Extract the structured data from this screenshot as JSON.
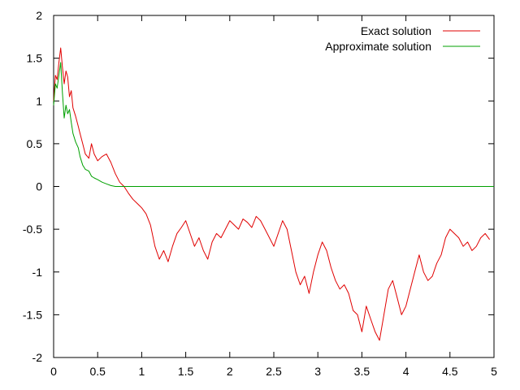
{
  "chart_data": {
    "type": "line",
    "title": "",
    "xlabel": "",
    "ylabel": "",
    "xlim": [
      0,
      5
    ],
    "ylim": [
      -2,
      2
    ],
    "xticks": [
      0,
      0.5,
      1,
      1.5,
      2,
      2.5,
      3,
      3.5,
      4,
      4.5,
      5
    ],
    "yticks": [
      -2,
      -1.5,
      -1,
      -0.5,
      0,
      0.5,
      1,
      1.5,
      2
    ],
    "xtick_labels": [
      "0",
      "0.5",
      "1",
      "1.5",
      "2",
      "2.5",
      "3",
      "3.5",
      "4",
      "4.5",
      "5"
    ],
    "ytick_labels": [
      "-2",
      "-1.5",
      "-1",
      "-0.5",
      "0",
      "0.5",
      "1",
      "1.5",
      "2"
    ],
    "grid": false,
    "legend_position": "top-right",
    "series": [
      {
        "name": "Exact solution",
        "color": "#e00000",
        "x": [
          0.0,
          0.02,
          0.04,
          0.06,
          0.08,
          0.1,
          0.12,
          0.14,
          0.16,
          0.18,
          0.2,
          0.22,
          0.25,
          0.28,
          0.3,
          0.33,
          0.36,
          0.4,
          0.43,
          0.46,
          0.5,
          0.55,
          0.6,
          0.65,
          0.7,
          0.75,
          0.8,
          0.85,
          0.9,
          0.95,
          1.0,
          1.05,
          1.1,
          1.15,
          1.2,
          1.25,
          1.3,
          1.35,
          1.4,
          1.45,
          1.5,
          1.55,
          1.6,
          1.65,
          1.7,
          1.75,
          1.8,
          1.85,
          1.9,
          1.95,
          2.0,
          2.05,
          2.1,
          2.15,
          2.2,
          2.25,
          2.3,
          2.35,
          2.4,
          2.45,
          2.5,
          2.55,
          2.6,
          2.65,
          2.7,
          2.75,
          2.8,
          2.85,
          2.9,
          2.95,
          3.0,
          3.05,
          3.1,
          3.15,
          3.2,
          3.25,
          3.3,
          3.35,
          3.4,
          3.45,
          3.5,
          3.55,
          3.6,
          3.65,
          3.7,
          3.75,
          3.8,
          3.85,
          3.9,
          3.95,
          4.0,
          4.05,
          4.1,
          4.15,
          4.2,
          4.25,
          4.3,
          4.35,
          4.4,
          4.45,
          4.5,
          4.55,
          4.6,
          4.65,
          4.7,
          4.75,
          4.8,
          4.85,
          4.9,
          4.95
        ],
        "y": [
          1.0,
          1.3,
          1.25,
          1.45,
          1.62,
          1.4,
          1.2,
          1.35,
          1.28,
          1.05,
          1.12,
          0.92,
          0.82,
          0.7,
          0.62,
          0.5,
          0.38,
          0.33,
          0.5,
          0.38,
          0.3,
          0.35,
          0.38,
          0.28,
          0.15,
          0.05,
          0.0,
          -0.08,
          -0.15,
          -0.2,
          -0.25,
          -0.32,
          -0.45,
          -0.7,
          -0.85,
          -0.75,
          -0.88,
          -0.7,
          -0.55,
          -0.48,
          -0.4,
          -0.55,
          -0.7,
          -0.6,
          -0.75,
          -0.85,
          -0.65,
          -0.55,
          -0.6,
          -0.5,
          -0.4,
          -0.45,
          -0.5,
          -0.38,
          -0.42,
          -0.48,
          -0.35,
          -0.4,
          -0.5,
          -0.6,
          -0.7,
          -0.55,
          -0.4,
          -0.5,
          -0.75,
          -1.0,
          -1.15,
          -1.05,
          -1.25,
          -1.0,
          -0.8,
          -0.65,
          -0.75,
          -0.95,
          -1.1,
          -1.2,
          -1.15,
          -1.25,
          -1.45,
          -1.5,
          -1.7,
          -1.4,
          -1.55,
          -1.7,
          -1.8,
          -1.5,
          -1.2,
          -1.1,
          -1.3,
          -1.5,
          -1.4,
          -1.2,
          -1.0,
          -0.8,
          -1.0,
          -1.1,
          -1.05,
          -0.9,
          -0.8,
          -0.6,
          -0.5,
          -0.55,
          -0.6,
          -0.7,
          -0.65,
          -0.75,
          -0.7,
          -0.6,
          -0.55,
          -0.62
        ]
      },
      {
        "name": "Approximate solution",
        "color": "#00a000",
        "x": [
          0.0,
          0.02,
          0.04,
          0.06,
          0.08,
          0.1,
          0.12,
          0.14,
          0.16,
          0.18,
          0.2,
          0.22,
          0.25,
          0.28,
          0.3,
          0.33,
          0.36,
          0.4,
          0.43,
          0.46,
          0.5,
          0.55,
          0.6,
          0.65,
          0.7,
          0.75,
          1.0,
          2.0,
          3.0,
          4.0,
          5.0
        ],
        "y": [
          0.95,
          1.2,
          1.15,
          1.3,
          1.45,
          1.1,
          0.8,
          0.95,
          0.85,
          0.9,
          0.75,
          0.62,
          0.52,
          0.45,
          0.35,
          0.25,
          0.2,
          0.18,
          0.12,
          0.1,
          0.08,
          0.05,
          0.03,
          0.01,
          0.0,
          0.0,
          0.0,
          0.0,
          0.0,
          0.0,
          0.0
        ]
      }
    ]
  }
}
